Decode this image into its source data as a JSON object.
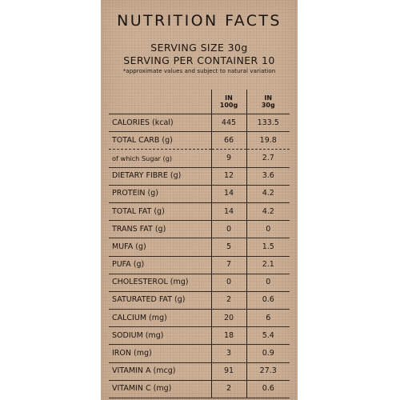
{
  "title": "NUTRITION FACTS",
  "serving_size": "SERVING SIZE 30g",
  "serving_per_container": "SERVING PER CONTAINER 10",
  "note": "*approximate values and subject to natural variation",
  "columns": {
    "per100_line1": "IN",
    "per100_line2": "100g",
    "per30_line1": "IN",
    "per30_line2": "30g"
  },
  "rows": [
    {
      "name": "CALORIES (kcal)",
      "per100": "445",
      "per30": "133.5"
    },
    {
      "name": "TOTAL CARB (g)",
      "per100": "66",
      "per30": "19.8"
    },
    {
      "name": "of which Sugar (g)",
      "per100": "9",
      "per30": "2.7"
    },
    {
      "name": "DIETARY FIBRE (g)",
      "per100": "12",
      "per30": "3.6"
    },
    {
      "name": "PROTEIN (g)",
      "per100": "14",
      "per30": "4.2"
    },
    {
      "name": "TOTAL FAT (g)",
      "per100": "14",
      "per30": "4.2"
    },
    {
      "name": "TRANS FAT (g)",
      "per100": "0",
      "per30": "0"
    },
    {
      "name": "MUFA (g)",
      "per100": "5",
      "per30": "1.5"
    },
    {
      "name": "PUFA (g)",
      "per100": "7",
      "per30": "2.1"
    },
    {
      "name": "CHOLESTEROL (mg)",
      "per100": "0",
      "per30": "0"
    },
    {
      "name": "SATURATED FAT (g)",
      "per100": "2",
      "per30": "0.6"
    },
    {
      "name": "CALCIUM (mg)",
      "per100": "20",
      "per30": "6"
    },
    {
      "name": "SODIUM (mg)",
      "per100": "18",
      "per30": "5.4"
    },
    {
      "name": "IRON (mg)",
      "per100": "3",
      "per30": "0.9"
    },
    {
      "name": "VITAMIN A (mcg)",
      "per100": "91",
      "per30": "27.3"
    },
    {
      "name": "VITAMIN C (mg)",
      "per100": "2",
      "per30": "0.6"
    }
  ]
}
